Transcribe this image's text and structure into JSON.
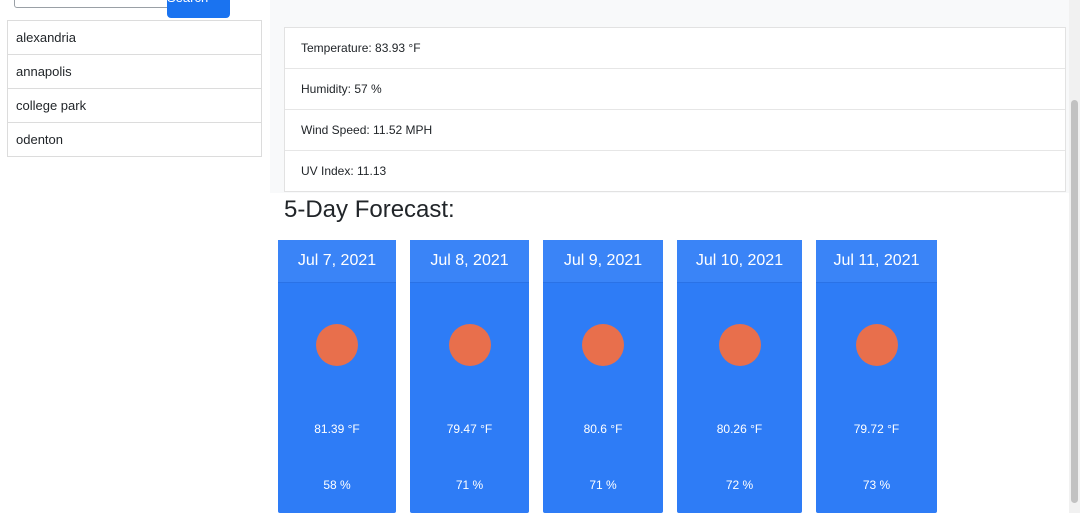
{
  "search": {
    "placeholder": "",
    "button_label": "Search"
  },
  "cities": [
    "alexandria",
    "annapolis",
    "college park",
    "odenton"
  ],
  "current": {
    "temperature": "Temperature: 83.93 °F",
    "humidity": "Humidity: 57 %",
    "wind": "Wind Speed: 11.52 MPH",
    "uv": "UV Index: 11.13"
  },
  "forecast": {
    "title": "5-Day Forecast:",
    "days": [
      {
        "date": "Jul 7, 2021",
        "temp": "81.39 °F",
        "humidity": "58 %",
        "icon": "sun-icon"
      },
      {
        "date": "Jul 8, 2021",
        "temp": "79.47 °F",
        "humidity": "71 %",
        "icon": "sun-icon"
      },
      {
        "date": "Jul 9, 2021",
        "temp": "80.6 °F",
        "humidity": "71 %",
        "icon": "sun-icon"
      },
      {
        "date": "Jul 10, 2021",
        "temp": "80.26 °F",
        "humidity": "72 %",
        "icon": "sun-icon"
      },
      {
        "date": "Jul 11, 2021",
        "temp": "79.72 °F",
        "humidity": "73 %",
        "icon": "sun-icon"
      }
    ]
  },
  "colors": {
    "accent": "#2e7cf6",
    "sun": "#e86f4c"
  }
}
